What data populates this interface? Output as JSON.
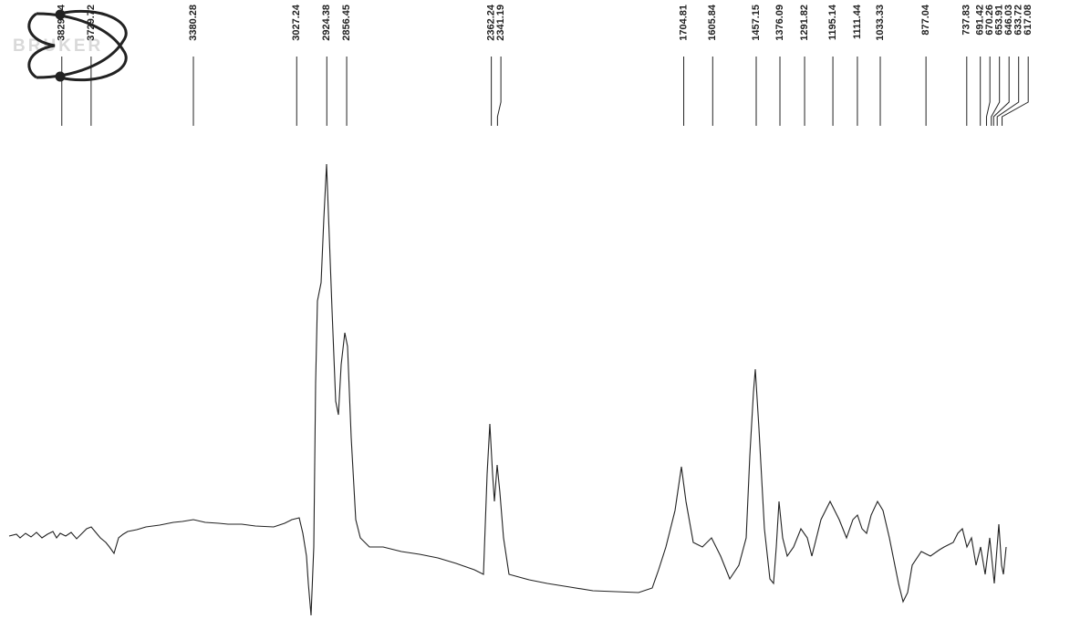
{
  "chart_data": {
    "type": "spectrum",
    "logo": "BRUKER",
    "xlim": [
      4041,
      385
    ],
    "peaks": [
      3829.84,
      3729.72,
      3380.28,
      3027.24,
      2924.38,
      2856.45,
      2362.24,
      2341.19,
      1704.81,
      1605.84,
      1457.15,
      1376.09,
      1291.82,
      1195.14,
      1111.44,
      1033.33,
      877.04,
      737.83,
      691.42,
      670.26,
      653.91,
      646.03,
      633.72,
      617.08
    ],
    "color": "#222222"
  }
}
